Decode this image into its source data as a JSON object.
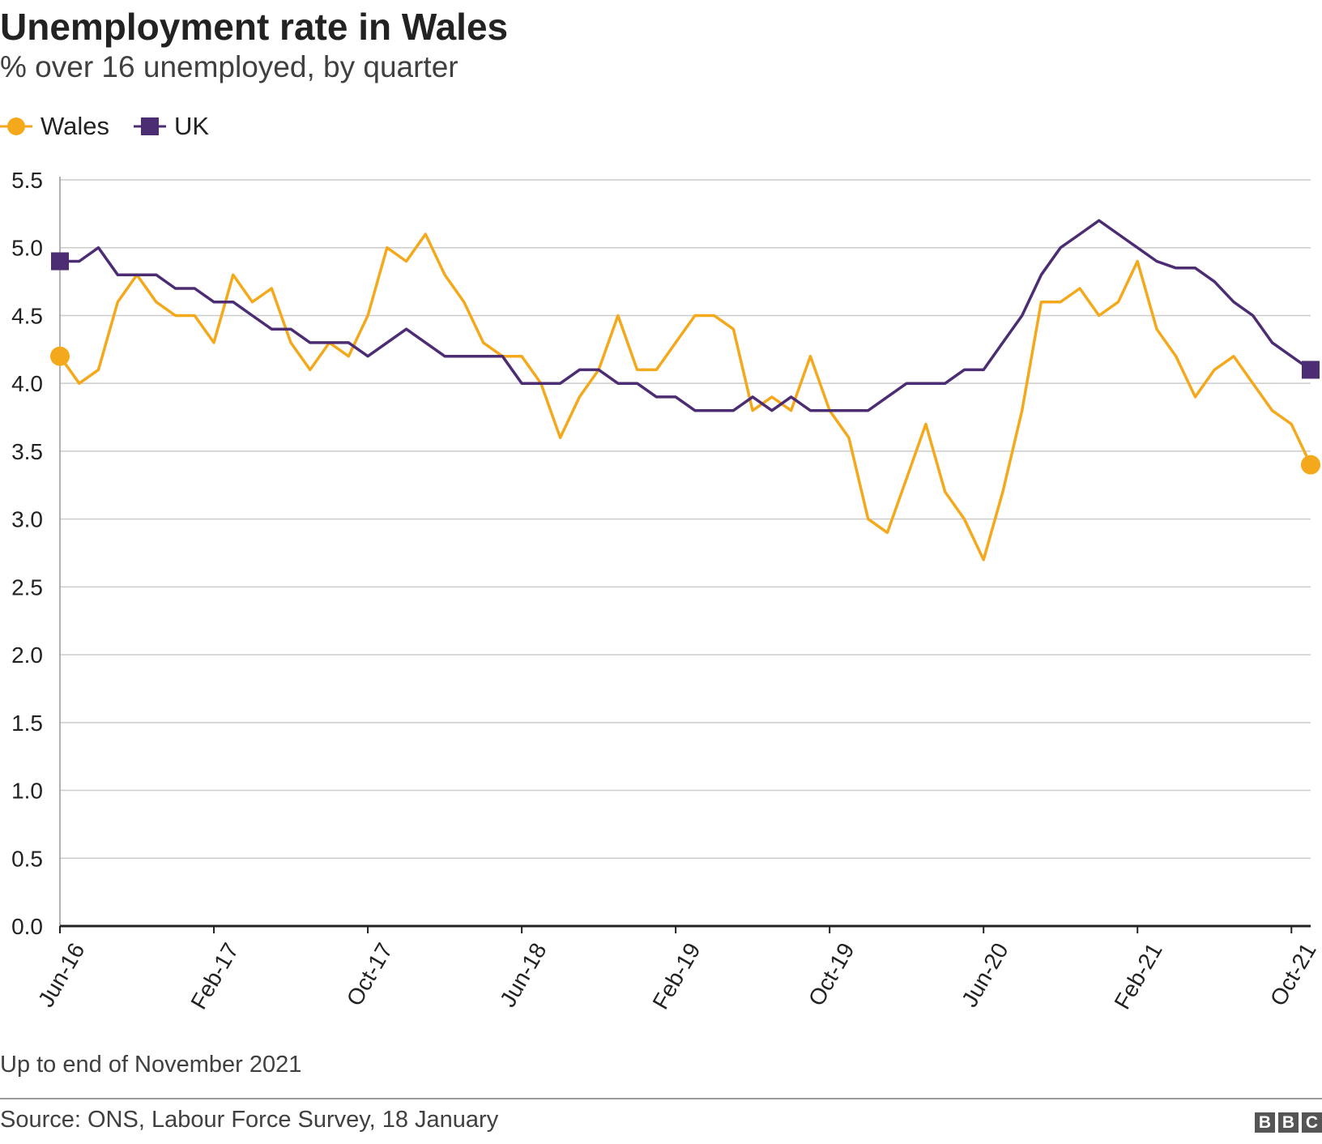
{
  "header": {
    "title": "Unemployment rate in Wales",
    "subtitle": "% over 16 unemployed, by quarter"
  },
  "legend": {
    "items": [
      {
        "label": "Wales",
        "color": "#f4a91c",
        "marker": "circle"
      },
      {
        "label": "UK",
        "color": "#4c2c72",
        "marker": "square"
      }
    ]
  },
  "footer": {
    "note": "Up to end of November 2021",
    "source": "Source: ONS, Labour Force Survey, 18 January",
    "logo": [
      "B",
      "B",
      "C"
    ]
  },
  "chart_data": {
    "type": "line",
    "title": "Unemployment rate in Wales",
    "subtitle": "% over 16 unemployed, by quarter",
    "xlabel": "",
    "ylabel": "",
    "ylim": [
      0,
      5.5
    ],
    "yticks": [
      0.0,
      0.5,
      1.0,
      1.5,
      2.0,
      2.5,
      3.0,
      3.5,
      4.0,
      4.5,
      5.0,
      5.5
    ],
    "ytick_labels": [
      "0.0",
      "0.5",
      "1.0",
      "1.5",
      "2.0",
      "2.5",
      "3.0",
      "3.5",
      "4.0",
      "4.5",
      "5.0",
      "5.5"
    ],
    "x_tick_labels": [
      "Jun-16",
      "Feb-17",
      "Oct-17",
      "Jun-18",
      "Feb-19",
      "Oct-19",
      "Jun-20",
      "Feb-21",
      "Oct-21"
    ],
    "x_tick_every": 8,
    "grid": true,
    "legend_position": "top-left",
    "series": [
      {
        "name": "Wales",
        "color": "#f4a91c",
        "marker": "circle",
        "values": [
          4.2,
          4.0,
          4.1,
          4.6,
          4.8,
          4.6,
          4.5,
          4.5,
          4.3,
          4.8,
          4.6,
          4.7,
          4.3,
          4.1,
          4.3,
          4.2,
          4.5,
          5.0,
          4.9,
          5.1,
          4.8,
          4.6,
          4.3,
          4.2,
          4.2,
          4.0,
          3.6,
          3.9,
          4.1,
          4.5,
          4.1,
          4.1,
          4.3,
          4.5,
          4.5,
          4.4,
          3.8,
          3.9,
          3.8,
          4.2,
          3.8,
          3.6,
          3.0,
          2.9,
          3.3,
          3.7,
          3.2,
          3.0,
          2.7,
          3.2,
          3.8,
          4.6,
          4.6,
          4.7,
          4.5,
          4.6,
          4.9,
          4.4,
          4.2,
          3.9,
          4.1,
          4.2,
          4.0,
          3.8,
          3.7,
          3.4
        ]
      },
      {
        "name": "UK",
        "color": "#4c2c72",
        "marker": "square",
        "values": [
          4.9,
          4.9,
          5.0,
          4.8,
          4.8,
          4.8,
          4.7,
          4.7,
          4.6,
          4.6,
          4.5,
          4.4,
          4.4,
          4.3,
          4.3,
          4.3,
          4.2,
          4.3,
          4.4,
          4.3,
          4.2,
          4.2,
          4.2,
          4.2,
          4.0,
          4.0,
          4.0,
          4.1,
          4.1,
          4.0,
          4.0,
          3.9,
          3.9,
          3.8,
          3.8,
          3.8,
          3.9,
          3.8,
          3.9,
          3.8,
          3.8,
          3.8,
          3.8,
          3.9,
          4.0,
          4.0,
          4.0,
          4.1,
          4.1,
          4.3,
          4.5,
          4.8,
          5.0,
          5.1,
          5.2,
          5.1,
          5.0,
          4.9,
          4.85,
          4.85,
          4.75,
          4.6,
          4.5,
          4.3,
          4.2,
          4.1
        ]
      }
    ]
  }
}
